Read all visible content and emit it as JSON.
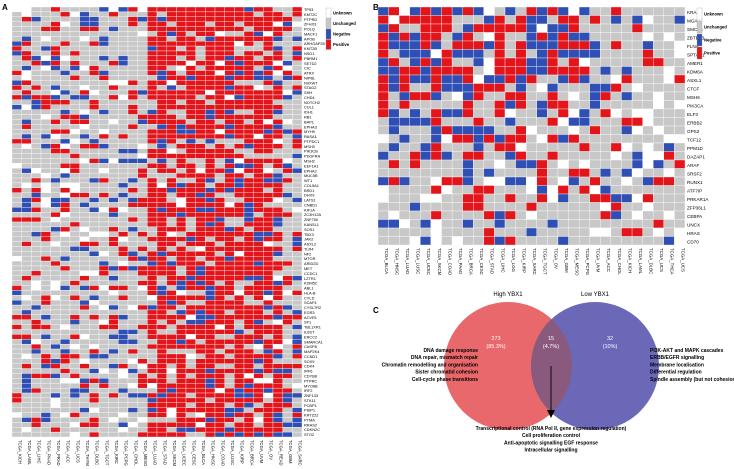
{
  "colors": {
    "unknown": "#ffffff",
    "unchanged": "#c8c8c8",
    "negative": "#2f4fb5",
    "positive": "#e3151b",
    "grid": "#ffffff",
    "venn_high": "#e8686c",
    "venn_low": "#6b68b8",
    "venn_overlap": "#8a5a7e"
  },
  "legend": {
    "items": [
      {
        "key": "unknown",
        "label": "Unknown"
      },
      {
        "key": "unchanged",
        "label": "Unchanged"
      },
      {
        "key": "negative",
        "label": "Negative"
      },
      {
        "key": "positive",
        "label": "Positive"
      }
    ]
  },
  "panel_a": {
    "letter": "A",
    "genes": [
      "TP53",
      "KMT2C",
      "PTPRD",
      "ZFHX3",
      "POLQ",
      "MACF1",
      "APOB",
      "ARHGAP35",
      "KMT2B",
      "NSD1",
      "PBRM1",
      "SETD2",
      "CIC",
      "ATRX",
      "NIPBL",
      "FBXW7",
      "STAG2",
      "SHH",
      "CHD4",
      "NOTCH2",
      "CUL1",
      "IDH1",
      "RB1",
      "BAP1",
      "EPHA3",
      "MYH9",
      "RASA1",
      "PTPDC1",
      "MSH3",
      "PIK3CB",
      "PDGFRA",
      "MSH2",
      "EEF1A1",
      "EPHA2",
      "MUC5B",
      "WT1",
      "COL5A1",
      "BRD1",
      "DHX9",
      "LATS1",
      "CNBD1",
      "KIF1A",
      "ZC3H12A",
      "ZNF750",
      "KANSL1",
      "SOS1",
      "TBX3",
      "JAK2",
      "ASXL2",
      "TLR4",
      "NF2",
      "MTOR",
      "ARID2D",
      "MET",
      "CCDC1",
      "LZTR1",
      "KDM5C",
      "ABL1",
      "HLA-B",
      "CYLD",
      "SCAF4",
      "CYSLTR2",
      "EGR3",
      "ACVR1",
      "SF1",
      "TBL1XR1",
      "IL6ST",
      "ERCC2",
      "SMARCA1",
      "CASP8",
      "MAP2K4",
      "CCND1",
      "SOX9",
      "CDK4",
      "IRF6",
      "CDYB8",
      "PTPRC",
      "MYO6B",
      "IRF2",
      "ZNF133",
      "STK11",
      "PCBP1",
      "PSIP1",
      "KRTZ22",
      "PTMA",
      "RRAS2",
      "CDKN2C",
      "STG2"
    ],
    "cancers": [
      "TCGA_KICH",
      "TCGA_LAML",
      "TCGA_LIHC",
      "TCGA_PAAD",
      "TCGA_PRAD",
      "TCGA_ACC",
      "TCGA_UCS",
      "TCGA_THYM",
      "TCGA_DLBC",
      "TCGA_TGCT",
      "TCGA_KIRC",
      "TCGA_PCPG",
      "TCGA_CHOL",
      "TCGA_MESO",
      "TCGA_LUAD",
      "TCGA_STAD",
      "TCGA_SKCM",
      "TCGA_UCEC",
      "TCGA_CESC",
      "TCGA_BLCA",
      "TCGA_HNSC",
      "TCGA_COAD",
      "TCGA_LUSC",
      "TCGA_KIRP",
      "TCGA_BRCA",
      "TCGA_UVM",
      "TCGA_OV",
      "TCGA_READ",
      "TCGA_GBM",
      "TCGA_SARC"
    ]
  },
  "panel_b": {
    "letter": "B",
    "genes": [
      "KRAS",
      "MGA",
      "SMC1A",
      "ZBTB7B",
      "FLNA",
      "SPTAN1",
      "AMER1",
      "KDM6A",
      "ASXL1",
      "CTCF",
      "MSH6",
      "PIK3CA",
      "ELF3",
      "ERBB2",
      "GPS2",
      "TCF12",
      "PPM1D",
      "DAZAP1",
      "ARAF",
      "SRSF2",
      "RUNX1",
      "ATF7IP",
      "PRKAR1A",
      "ZFP36L1",
      "CEBPA",
      "UNCX",
      "HRAS",
      "CD70"
    ],
    "cancers": [
      "TCGA_BLCA",
      "TCGA_HNSC",
      "TCGA_LUAD",
      "TCGA_LUSC",
      "TCGA_UCEC",
      "TCGA_SKCM",
      "TCGA_COAD",
      "TCGA_PAAD",
      "TCGA_BRCA",
      "TCGA_CESC",
      "TCGA_STAD",
      "TCGA_LIHC",
      "TCGA_LGG",
      "TCGA_KIRP",
      "TCGA_SARC",
      "TCGA_TGCT",
      "TCGA_OV",
      "TCGA_GBM",
      "TCGA_MESO",
      "TCGA_PCPG",
      "TCGA_UVM",
      "TCGA_ACC",
      "TCGA_CHOL",
      "TCGA_KICH",
      "TCGA_LAML",
      "TCGA_DLBC",
      "TCGA_UCS",
      "TCGA_THCA",
      "TCGA_UCS"
    ]
  },
  "panel_c": {
    "letter": "C",
    "high_label": "High YBX1",
    "low_label": "Low YBX1",
    "high_count": "273",
    "high_pct": "(85.3%)",
    "overlap_count": "15",
    "overlap_pct": "(4.7%)",
    "low_count": "32",
    "low_pct": "(10%)",
    "left_terms": [
      "DNA damage response",
      "DNA repair, mismatch repair",
      "Chromatin remodelling and organisation",
      "Sister chromatid cohesion",
      "Cell-cycle phase transitions"
    ],
    "right_terms": [
      "PI3K-AKT and MAPK cascades",
      "ERBB/EGFR signalling",
      "Membrane localisation",
      "Differential regulation",
      "Spindle assembly (but not cohesion failure)"
    ],
    "bottom_terms": [
      "Transcriptional control (RNA Pol II, gene expression regulation)",
      "Cell proliferation control",
      "Anti-apoptotic signalling EGF response",
      "Intracellular signalling"
    ]
  },
  "chart_data": [
    {
      "type": "heatmap",
      "title": "",
      "rows": "panel_a.genes",
      "columns": "panel_a.cancers",
      "legend": [
        "Unknown",
        "Unchanged",
        "Negative",
        "Positive"
      ],
      "legend_placement": "right"
    },
    {
      "type": "heatmap",
      "title": "",
      "rows": "panel_b.genes",
      "columns": "panel_b.cancers",
      "legend": [
        "Unknown",
        "Unchanged",
        "Negative",
        "Positive"
      ],
      "legend_placement": "right"
    },
    {
      "type": "venn",
      "sets": [
        {
          "name": "High YBX1",
          "count": 273,
          "percent": 85.3
        },
        {
          "name": "Low YBX1",
          "count": 32,
          "percent": 10
        }
      ],
      "overlap": {
        "count": 15,
        "percent": 4.7
      }
    }
  ]
}
